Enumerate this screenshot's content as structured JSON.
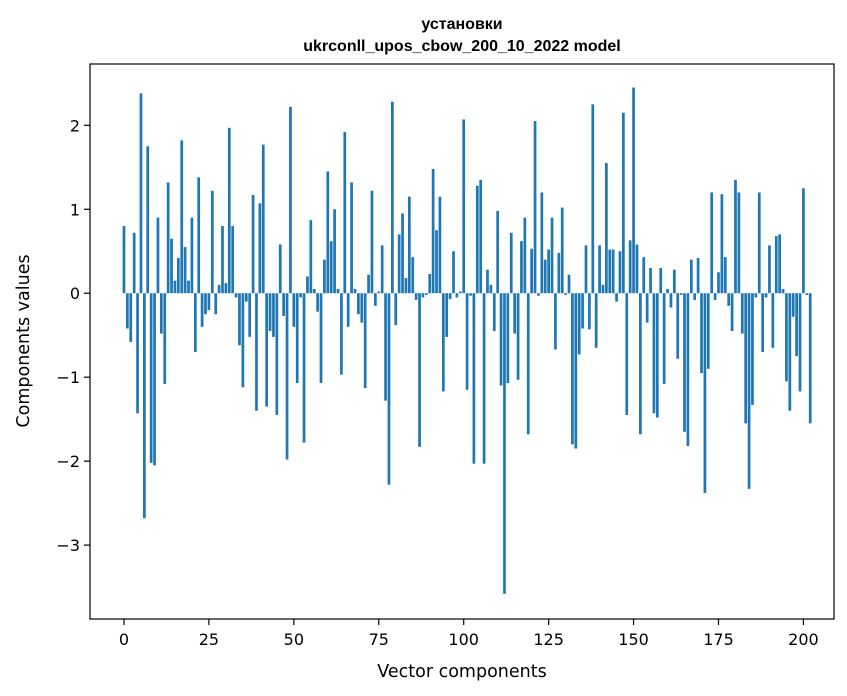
{
  "chart_data": {
    "type": "bar",
    "title_line1": "установки",
    "title_line2": "ukrconll_upos_cbow_200_10_2022 model",
    "xlabel": "Vector components",
    "ylabel": "Components values",
    "xlim": [
      -10,
      209
    ],
    "ylim": [
      -3.88,
      2.73
    ],
    "xticks": [
      0,
      25,
      50,
      75,
      100,
      125,
      150,
      175,
      200
    ],
    "yticks": [
      -3,
      -2,
      -1,
      0,
      1,
      2
    ],
    "ytick_labels": [
      "−3",
      "−2",
      "−1",
      "0",
      "1",
      "2"
    ],
    "bar_color": "#1f77b4",
    "values": [
      0.8,
      -0.42,
      -0.58,
      0.72,
      -1.43,
      2.38,
      -2.68,
      1.75,
      -2.02,
      -2.05,
      0.9,
      -0.48,
      -1.08,
      1.32,
      0.65,
      0.15,
      0.42,
      1.82,
      0.55,
      0.15,
      0.9,
      -0.7,
      1.38,
      -0.4,
      -0.25,
      -0.2,
      1.22,
      -0.25,
      0.1,
      0.8,
      0.12,
      1.97,
      0.8,
      -0.05,
      -0.62,
      -1.12,
      -0.1,
      -0.52,
      1.17,
      -1.4,
      1.07,
      1.77,
      -1.35,
      -0.45,
      -0.52,
      -1.45,
      0.58,
      -0.27,
      -1.98,
      2.22,
      -0.4,
      -1.07,
      -0.05,
      -1.78,
      0.2,
      0.87,
      0.05,
      -0.22,
      -1.07,
      0.4,
      1.45,
      0.62,
      1.0,
      0.05,
      -0.97,
      1.92,
      -0.4,
      1.32,
      0.05,
      -0.25,
      -0.35,
      -1.13,
      0.22,
      1.22,
      -0.15,
      0.02,
      0.57,
      -1.28,
      -2.28,
      2.28,
      -0.38,
      0.7,
      0.95,
      0.18,
      1.15,
      0.43,
      -0.08,
      -1.83,
      -0.05,
      -0.02,
      0.23,
      1.48,
      0.75,
      1.15,
      -1.17,
      -0.52,
      -0.07,
      0.5,
      -0.05,
      0.02,
      2.07,
      -1.15,
      -0.03,
      -2.03,
      1.28,
      1.35,
      -2.03,
      0.28,
      0.1,
      -0.45,
      0.98,
      -1.1,
      -3.58,
      -1.07,
      0.72,
      -0.48,
      -1.03,
      0.62,
      0.9,
      -1.68,
      0.53,
      2.05,
      -0.03,
      1.2,
      0.4,
      0.52,
      0.9,
      -0.67,
      0.48,
      1.02,
      -0.02,
      0.22,
      -1.8,
      -1.85,
      -0.73,
      -0.42,
      0.57,
      -0.43,
      2.25,
      -0.65,
      0.57,
      0.1,
      1.55,
      0.52,
      0.52,
      -0.1,
      0.5,
      2.15,
      -1.45,
      0.63,
      2.45,
      0.58,
      -1.68,
      0.43,
      -0.35,
      0.3,
      -1.43,
      -1.48,
      0.3,
      -1.08,
      0.05,
      -0.17,
      0.28,
      -0.78,
      -0.02,
      -1.65,
      -1.82,
      0.4,
      -0.08,
      0.42,
      -0.95,
      -2.38,
      -0.9,
      1.2,
      -0.08,
      0.25,
      1.18,
      0.43,
      -0.15,
      -0.45,
      1.35,
      1.2,
      -0.48,
      -1.55,
      -2.33,
      -1.33,
      -0.05,
      1.2,
      -0.7,
      -0.05,
      0.57,
      -0.65,
      0.68,
      0.7,
      0.05,
      -1.05,
      -1.4,
      -0.28,
      -0.75,
      -1.17,
      1.25,
      -0.02,
      -1.55
    ]
  }
}
